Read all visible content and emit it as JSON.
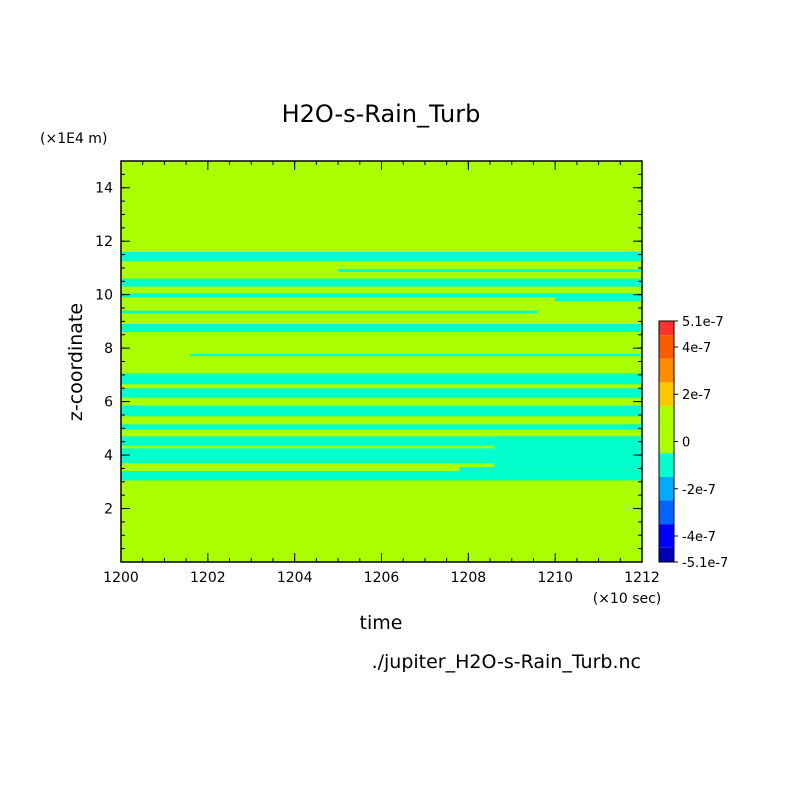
{
  "chart_data": {
    "type": "heatmap",
    "title": "H2O-s-Rain_Turb",
    "xlabel": "time",
    "ylabel": "z-coordinate",
    "x_unit": "(×10 sec)",
    "y_unit": "(×1E4 m)",
    "source": "./jupiter_H2O-s-Rain_Turb.nc",
    "xlim": [
      1200,
      1212
    ],
    "ylim": [
      0,
      15
    ],
    "x_ticks": [
      1200,
      1202,
      1204,
      1206,
      1208,
      1210,
      1212
    ],
    "y_ticks": [
      2,
      4,
      6,
      8,
      10,
      12,
      14
    ],
    "background_value": "0",
    "colorbar": {
      "labels": [
        "5.1e-7",
        "4e-7",
        "2e-7",
        "0",
        "-2e-7",
        "-4e-7",
        "-5.1e-7"
      ],
      "levels": [
        {
          "min": 4.5e-07,
          "max": 5.1e-07,
          "color": "#ff3030"
        },
        {
          "min": 3.5e-07,
          "max": 4.5e-07,
          "color": "#ff5a00"
        },
        {
          "min": 2.5e-07,
          "max": 3.5e-07,
          "color": "#ff8c00"
        },
        {
          "min": 1.5e-07,
          "max": 2.5e-07,
          "color": "#ffc800"
        },
        {
          "min": -5e-08,
          "max": 1.5e-07,
          "color": "#aaff00"
        },
        {
          "min": -1.5e-07,
          "max": -5e-08,
          "color": "#00ffcc"
        },
        {
          "min": -2.5e-07,
          "max": -1.5e-07,
          "color": "#00aaff"
        },
        {
          "min": -3.5e-07,
          "max": -2.5e-07,
          "color": "#0064ff"
        },
        {
          "min": -4.5e-07,
          "max": -3.5e-07,
          "color": "#0000ff"
        },
        {
          "min": -5.1e-07,
          "max": -4.5e-07,
          "color": "#0000b4"
        }
      ]
    },
    "bands": [
      {
        "x0": 1200,
        "x1": 1212,
        "y0": 11.25,
        "y1": 11.6,
        "level": "-1e-7"
      },
      {
        "x0": 1205,
        "x1": 1212,
        "y0": 10.85,
        "y1": 10.95,
        "level": "-1e-7"
      },
      {
        "x0": 1200,
        "x1": 1212,
        "y0": 10.3,
        "y1": 10.6,
        "level": "-1e-7"
      },
      {
        "x0": 1200,
        "x1": 1212,
        "y0": 9.9,
        "y1": 10.05,
        "level": "-1e-7"
      },
      {
        "x0": 1210,
        "x1": 1212,
        "y0": 9.75,
        "y1": 9.9,
        "level": "-1e-7"
      },
      {
        "x0": 1200,
        "x1": 1209.6,
        "y0": 9.3,
        "y1": 9.4,
        "level": "-1e-7"
      },
      {
        "x0": 1200,
        "x1": 1212,
        "y0": 8.6,
        "y1": 8.9,
        "level": "-1e-7"
      },
      {
        "x0": 1201.6,
        "x1": 1212,
        "y0": 7.7,
        "y1": 7.78,
        "level": "-1e-7"
      },
      {
        "x0": 1200,
        "x1": 1212,
        "y0": 6.65,
        "y1": 7.05,
        "level": "-1e-7"
      },
      {
        "x0": 1200,
        "x1": 1212,
        "y0": 6.15,
        "y1": 6.5,
        "level": "-1e-7"
      },
      {
        "x0": 1200,
        "x1": 1212,
        "y0": 5.45,
        "y1": 5.85,
        "level": "-1e-7"
      },
      {
        "x0": 1200,
        "x1": 1212,
        "y0": 4.95,
        "y1": 5.15,
        "level": "-1e-7"
      },
      {
        "x0": 1200,
        "x1": 1212,
        "y0": 4.35,
        "y1": 4.7,
        "level": "-1e-7"
      },
      {
        "x0": 1200,
        "x1": 1212,
        "y0": 3.7,
        "y1": 4.25,
        "level": "-1e-7"
      },
      {
        "x0": 1208.6,
        "x1": 1212,
        "y0": 3.55,
        "y1": 4.7,
        "level": "-1e-7"
      },
      {
        "x0": 1200,
        "x1": 1212,
        "y0": 3.05,
        "y1": 3.4,
        "level": "-1e-7"
      },
      {
        "x0": 1207.8,
        "x1": 1212,
        "y0": 3.4,
        "y1": 3.55,
        "level": "-1e-7"
      }
    ]
  }
}
